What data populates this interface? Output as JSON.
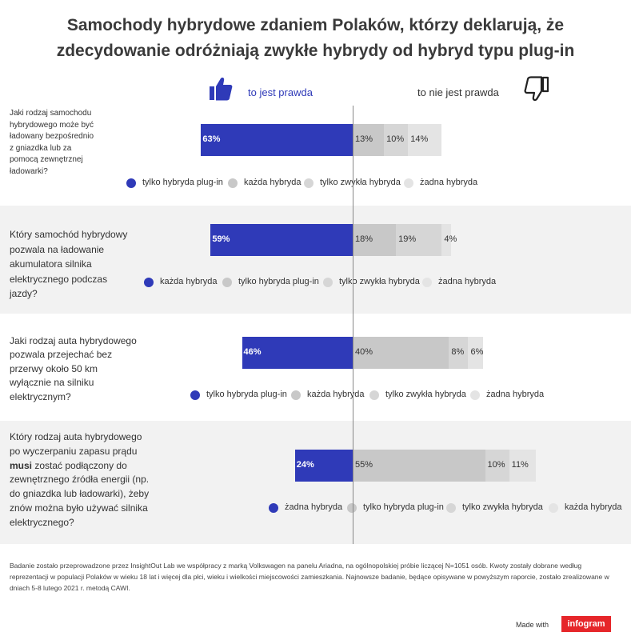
{
  "title_line1": "Samochody hybrydowe zdaniem Polaków, którzy deklarują, że",
  "title_line2": "zdecydowanie odróżniają zwykłe hybrydy od hybryd typu plug-in",
  "label_true": "to jest prawda",
  "label_false": "to nie jest prawda",
  "icons": {
    "true": "thumbs-up-icon",
    "false": "thumbs-down-icon"
  },
  "colors": {
    "primary": "#2f3ab8",
    "c2": "#c8c8c8",
    "c3": "#d6d6d6",
    "c4": "#e4e4e4",
    "logo": "#e6262a"
  },
  "footnote": "Badanie zostało przeprowadzone przez InsightOut Lab we współpracy z marką Volkswagen na panelu Ariadna, na ogólnopolskiej próbie liczącej N=1051 osób. Kwoty zostały dobrane według reprezentacji w populacji Polaków w wieku 18 lat i więcej dla płci, wieku i wielkości miejscowości zamieszkania. Najnowsze badanie, będące opisywane w powyższym raporcie, zostało zrealizowane  w dniach 5-8 lutego 2021 r. metodą CAWI.",
  "made_with": "Made with",
  "logo_text": "infogram",
  "chart_data": {
    "type": "bar",
    "orientation": "horizontal-diverging",
    "unit": "%",
    "questions": [
      {
        "question": "Jaki rodzaj samochodu hybrydowego może być ładowany bezpośrednio z gniazdka lub za pomocą zewnętrznej ładowarki?",
        "series": [
          {
            "name": "tylko hybryda plug-in",
            "value": 63,
            "label": "63%"
          },
          {
            "name": "każda hybryda",
            "value": 13,
            "label": "13%"
          },
          {
            "name": "tylko zwykła hybryda",
            "value": 10,
            "label": "10%"
          },
          {
            "name": "żadna hybryda",
            "value": 14,
            "label": "14%"
          }
        ]
      },
      {
        "question": "Który samochód hybrydowy pozwala na ładowanie akumulatora silnika elektrycznego podczas jazdy?",
        "series": [
          {
            "name": "każda hybryda",
            "value": 59,
            "label": "59%"
          },
          {
            "name": "tylko hybryda plug-in",
            "value": 18,
            "label": "18%"
          },
          {
            "name": "tylko zwykła hybryda",
            "value": 19,
            "label": "19%"
          },
          {
            "name": "żadna hybryda",
            "value": 4,
            "label": "4%"
          }
        ]
      },
      {
        "question": "Jaki rodzaj auta hybrydowego pozwala przejechać bez przerwy około 50 km wyłącznie na silniku elektrycznym?",
        "series": [
          {
            "name": "tylko hybryda plug-in",
            "value": 46,
            "label": "46%"
          },
          {
            "name": "każda hybryda",
            "value": 40,
            "label": "40%"
          },
          {
            "name": "tylko zwykła hybryda",
            "value": 8,
            "label": "8%"
          },
          {
            "name": "żadna hybryda",
            "value": 6,
            "label": "6%"
          }
        ]
      },
      {
        "question_parts": [
          "Który rodzaj auta hybrydowego po wyczerpaniu zapasu prądu ",
          "musi",
          " zostać podłączony do zewnętrznego źródła energii (np. do gniazdka lub ładowarki), żeby znów można było używać silnika elektrycznego?"
        ],
        "question": "Który rodzaj auta hybrydowego po wyczerpaniu zapasu prądu musi zostać podłączony do zewnętrznego źródła energii (np. do gniazdka lub ładowarki), żeby znów można było używać silnika elektrycznego?",
        "series": [
          {
            "name": "żadna hybryda",
            "value": 24,
            "label": "24%"
          },
          {
            "name": "tylko hybryda plug-in",
            "value": 55,
            "label": "55%"
          },
          {
            "name": "tylko zwykła hybryda",
            "value": 10,
            "label": "10%"
          },
          {
            "name": "każda hybryda",
            "value": 11,
            "label": "11%"
          }
        ]
      }
    ]
  }
}
